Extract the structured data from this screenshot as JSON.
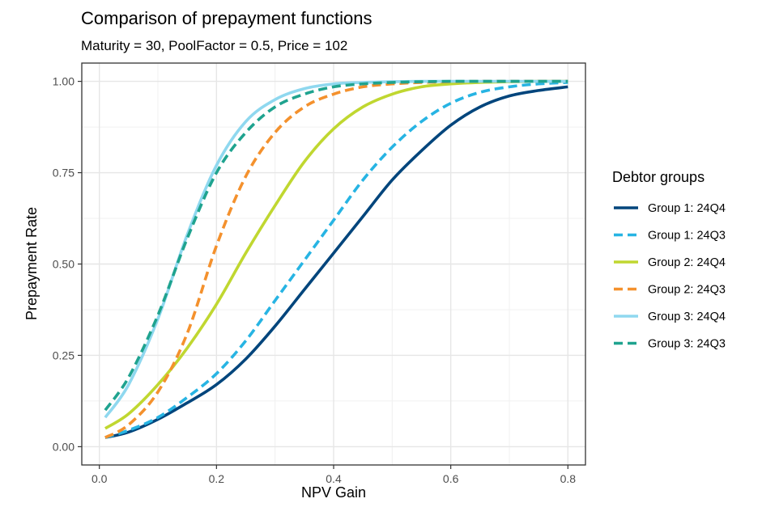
{
  "chart_data": {
    "type": "line",
    "title": "Comparison of prepayment functions",
    "subtitle": "Maturity = 30, PoolFactor = 0.5, Price = 102",
    "xlabel": "NPV Gain",
    "ylabel": "Prepayment Rate",
    "xlim": [
      -0.03,
      0.83
    ],
    "ylim": [
      -0.05,
      1.05
    ],
    "x_ticks": [
      0.0,
      0.2,
      0.4,
      0.6,
      0.8
    ],
    "x_tick_labels": [
      "0.0",
      "0.2",
      "0.4",
      "0.6",
      "0.8"
    ],
    "y_ticks": [
      0.0,
      0.25,
      0.5,
      0.75,
      1.0
    ],
    "y_tick_labels": [
      "0.00",
      "0.25",
      "0.50",
      "0.75",
      "1.00"
    ],
    "grid": true,
    "legend": {
      "title": "Debtor groups",
      "position": "right"
    },
    "x": [
      0.01,
      0.05,
      0.1,
      0.15,
      0.2,
      0.25,
      0.3,
      0.35,
      0.4,
      0.45,
      0.5,
      0.55,
      0.6,
      0.65,
      0.7,
      0.75,
      0.8
    ],
    "series": [
      {
        "name": "Group 1: 24Q4",
        "color": "#00457c",
        "dash": "solid",
        "values": [
          0.025,
          0.04,
          0.075,
          0.12,
          0.17,
          0.24,
          0.33,
          0.43,
          0.53,
          0.63,
          0.73,
          0.81,
          0.88,
          0.93,
          0.96,
          0.975,
          0.985
        ]
      },
      {
        "name": "Group 1: 24Q3",
        "color": "#27b4e3",
        "dash": "dashed",
        "values": [
          0.025,
          0.045,
          0.08,
          0.135,
          0.2,
          0.29,
          0.4,
          0.51,
          0.62,
          0.73,
          0.82,
          0.89,
          0.94,
          0.97,
          0.985,
          0.993,
          0.997
        ]
      },
      {
        "name": "Group 2: 24Q4",
        "color": "#c0d730",
        "dash": "solid",
        "values": [
          0.05,
          0.09,
          0.17,
          0.27,
          0.39,
          0.53,
          0.66,
          0.78,
          0.87,
          0.93,
          0.965,
          0.985,
          0.993,
          0.997,
          0.999,
          1.0,
          1.0
        ]
      },
      {
        "name": "Group 2: 24Q3",
        "color": "#f4912d",
        "dash": "dashed",
        "values": [
          0.025,
          0.06,
          0.15,
          0.31,
          0.55,
          0.74,
          0.86,
          0.93,
          0.965,
          0.985,
          0.993,
          0.997,
          0.999,
          1.0,
          1.0,
          1.0,
          1.0
        ]
      },
      {
        "name": "Group 3: 24Q4",
        "color": "#8fd8ef",
        "dash": "solid",
        "values": [
          0.08,
          0.17,
          0.35,
          0.58,
          0.77,
          0.89,
          0.95,
          0.98,
          0.993,
          0.997,
          0.999,
          1.0,
          1.0,
          1.0,
          1.0,
          1.0,
          1.0
        ]
      },
      {
        "name": "Group 3: 24Q3",
        "color": "#1fa38f",
        "dash": "dashed",
        "values": [
          0.1,
          0.19,
          0.36,
          0.57,
          0.75,
          0.86,
          0.93,
          0.965,
          0.985,
          0.993,
          0.997,
          0.999,
          1.0,
          1.0,
          1.0,
          1.0,
          1.0
        ]
      }
    ]
  }
}
